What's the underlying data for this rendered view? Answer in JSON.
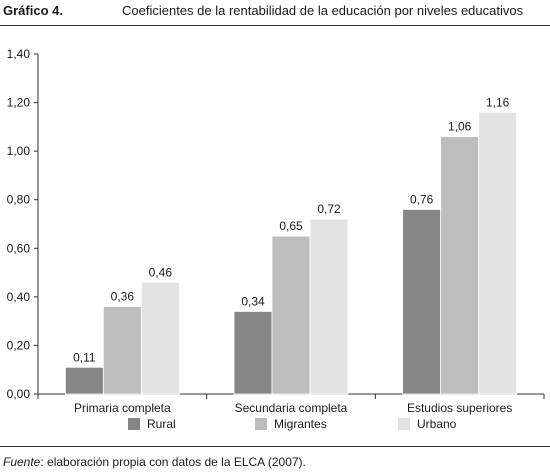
{
  "header": {
    "figure_label": "Gráfico 4.",
    "title": "Coeficientes de la rentabilidad de la educación por niveles educativos"
  },
  "source": {
    "label": "Fuente",
    "text": ": elaboración propia con datos de la ELCA (2007)."
  },
  "chart_data": {
    "type": "bar",
    "title": "Coeficientes de la rentabilidad de la educación por niveles educativos",
    "categories": [
      "Primaria completa",
      "Secundaria completa",
      "Estudios superiores"
    ],
    "series": [
      {
        "name": "Rural",
        "values": [
          0.11,
          0.34,
          0.76
        ],
        "labels": [
          "0,11",
          "0,34",
          "0,76"
        ],
        "color": "#868686"
      },
      {
        "name": "Migrantes",
        "values": [
          0.36,
          0.65,
          1.06
        ],
        "labels": [
          "0,36",
          "0,65",
          "1,06"
        ],
        "color": "#bdbdbd"
      },
      {
        "name": "Urbano",
        "values": [
          0.46,
          0.72,
          1.16
        ],
        "labels": [
          "0,46",
          "0,72",
          "1,16"
        ],
        "color": "#e3e3e3"
      }
    ],
    "y_ticks": [
      0,
      0.2,
      0.4,
      0.6,
      0.8,
      1.0,
      1.2,
      1.4
    ],
    "y_tick_labels": [
      "0,00",
      "0,20",
      "0,40",
      "0,60",
      "0,80",
      "1,00",
      "1,20",
      "1,40"
    ],
    "ylim": [
      0,
      1.4
    ],
    "xlabel": "",
    "ylabel": "",
    "grid": false,
    "legend_position": "bottom"
  }
}
